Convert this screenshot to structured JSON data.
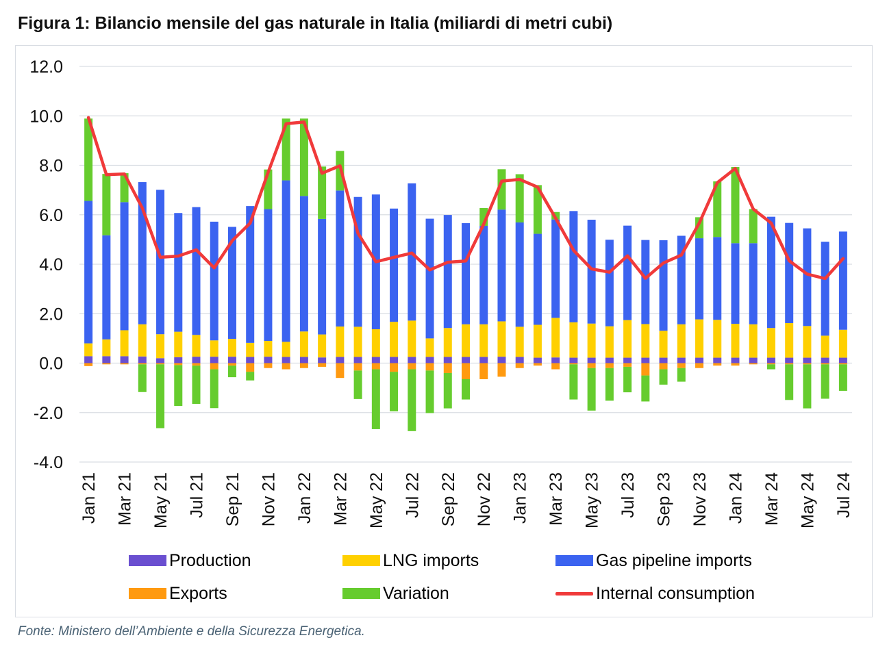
{
  "title": "Figura 1: Bilancio mensile del gas naturale in Italia (miliardi di metri cubi)",
  "source": "Fonte: Ministero dell’Ambiente e della Sicurezza Energetica.",
  "colors": {
    "production": "#6a4fd0",
    "lng": "#ffd000",
    "pipeline": "#3b63f0",
    "exports": "#ff9a10",
    "variation": "#66cc2e",
    "consumption": "#f03a3a",
    "grid": "#d9dde3"
  },
  "legend": {
    "production": "Production",
    "lng": "LNG imports",
    "pipeline": "Gas pipeline imports",
    "exports": "Exports",
    "variation": "Variation",
    "consumption": "Internal consumption"
  },
  "chart_data": {
    "type": "bar",
    "stacked": true,
    "ylim": [
      -4,
      12
    ],
    "yticks": [
      "12.0",
      "10.0",
      "8.0",
      "6.0",
      "4.0",
      "2.0",
      "0.0",
      "-2.0",
      "-4.0"
    ],
    "grid": true,
    "legend_position": "bottom",
    "categories": [
      "Jan 21",
      "Feb 21",
      "Mar 21",
      "Apr 21",
      "May 21",
      "Jun 21",
      "Jul 21",
      "Aug 21",
      "Sep 21",
      "Oct 21",
      "Nov 21",
      "Dec 21",
      "Jan 22",
      "Feb 22",
      "Mar 22",
      "Apr 22",
      "May 22",
      "Jun 22",
      "Jul 22",
      "Aug 22",
      "Sep 22",
      "Oct 22",
      "Nov 22",
      "Dec 22",
      "Jan 23",
      "Feb 23",
      "Mar 23",
      "Apr 23",
      "May 23",
      "Jun 23",
      "Jul 23",
      "Aug 23",
      "Sep 23",
      "Oct 23",
      "Nov 23",
      "Dec 23",
      "Jan 24",
      "Feb 24",
      "Mar 24",
      "Apr 24",
      "May 24",
      "Jun 24",
      "Jul 24"
    ],
    "tick_labels": [
      "Jan 21",
      "Mar 21",
      "May 21",
      "Jul 21",
      "Sep 21",
      "Nov 21",
      "Jan 22",
      "Mar 22",
      "May 22",
      "Jul 22",
      "Sep 22",
      "Nov 22",
      "Jan 23",
      "Mar 23",
      "May 23",
      "Jul 23",
      "Sep 23",
      "Nov 23",
      "Jan 24",
      "Mar 24",
      "May 24",
      "Jul 24"
    ],
    "series": [
      {
        "name": "Production",
        "key": "production",
        "values": [
          0.28,
          0.28,
          0.28,
          0.27,
          0.2,
          0.24,
          0.26,
          0.26,
          0.26,
          0.25,
          0.26,
          0.25,
          0.25,
          0.23,
          0.25,
          0.25,
          0.25,
          0.25,
          0.25,
          0.25,
          0.25,
          0.25,
          0.25,
          0.26,
          0.25,
          0.22,
          0.23,
          0.22,
          0.22,
          0.22,
          0.22,
          0.22,
          0.22,
          0.22,
          0.22,
          0.22,
          0.22,
          0.22,
          0.22,
          0.22,
          0.22,
          0.22,
          0.22
        ]
      },
      {
        "name": "LNG imports",
        "key": "lng",
        "values": [
          0.52,
          0.68,
          1.05,
          1.3,
          0.97,
          1.03,
          0.88,
          0.66,
          0.72,
          0.57,
          0.64,
          0.61,
          1.03,
          0.93,
          1.23,
          1.22,
          1.12,
          1.42,
          1.47,
          0.75,
          1.17,
          1.32,
          1.32,
          1.43,
          1.22,
          1.33,
          1.6,
          1.43,
          1.38,
          1.27,
          1.52,
          1.36,
          1.09,
          1.35,
          1.55,
          1.53,
          1.37,
          1.35,
          1.2,
          1.4,
          1.28,
          0.89,
          1.13
        ]
      },
      {
        "name": "Gas pipeline imports",
        "key": "pipeline",
        "values": [
          5.76,
          4.21,
          5.18,
          5.75,
          5.84,
          4.8,
          5.17,
          4.8,
          4.53,
          5.53,
          5.33,
          6.53,
          5.48,
          4.67,
          5.5,
          5.25,
          5.45,
          4.58,
          5.55,
          4.84,
          4.57,
          4.09,
          3.98,
          4.52,
          4.22,
          3.68,
          3.98,
          4.5,
          4.2,
          3.5,
          3.82,
          3.4,
          3.66,
          3.58,
          3.28,
          3.35,
          3.26,
          3.28,
          4.5,
          4.05,
          3.95,
          3.8,
          3.97
        ]
      },
      {
        "name": "Exports",
        "key": "exports",
        "values": [
          -0.12,
          -0.05,
          -0.05,
          -0.05,
          -0.05,
          -0.08,
          -0.1,
          -0.25,
          -0.1,
          -0.35,
          -0.2,
          -0.25,
          -0.2,
          -0.15,
          -0.6,
          -0.3,
          -0.25,
          -0.35,
          -0.25,
          -0.3,
          -0.4,
          -0.65,
          -0.65,
          -0.55,
          -0.2,
          -0.1,
          -0.25,
          -0.05,
          -0.2,
          -0.2,
          -0.15,
          -0.5,
          -0.25,
          -0.2,
          -0.2,
          -0.1,
          -0.1,
          -0.05,
          -0.05,
          -0.05,
          -0.05,
          -0.05,
          -0.05
        ]
      },
      {
        "name": "Variation",
        "key": "variation",
        "values": [
          3.33,
          2.48,
          1.17,
          -1.12,
          -2.58,
          -1.65,
          -1.55,
          -1.57,
          -0.47,
          -0.35,
          1.6,
          2.5,
          3.13,
          2.12,
          1.6,
          -1.15,
          -2.42,
          -1.6,
          -2.5,
          -1.72,
          -1.43,
          -0.82,
          0.72,
          1.63,
          1.95,
          1.97,
          0.3,
          -1.42,
          -1.72,
          -1.32,
          -1.03,
          -1.05,
          -0.62,
          -0.55,
          0.85,
          2.25,
          3.08,
          1.38,
          -0.2,
          -1.44,
          -1.78,
          -1.39,
          -1.07
        ]
      },
      {
        "name": "Internal consumption",
        "key": "consumption",
        "type": "line",
        "values": [
          9.93,
          7.62,
          7.65,
          6.27,
          4.28,
          4.33,
          4.58,
          3.85,
          4.95,
          5.66,
          7.71,
          9.68,
          9.75,
          7.68,
          7.98,
          5.25,
          4.1,
          4.28,
          4.45,
          3.77,
          4.08,
          4.13,
          5.62,
          7.36,
          7.43,
          7.12,
          5.86,
          4.56,
          3.81,
          3.68,
          4.34,
          3.43,
          4.05,
          4.37,
          5.67,
          7.3,
          7.87,
          6.23,
          5.66,
          4.14,
          3.6,
          3.42,
          4.23
        ]
      }
    ]
  }
}
